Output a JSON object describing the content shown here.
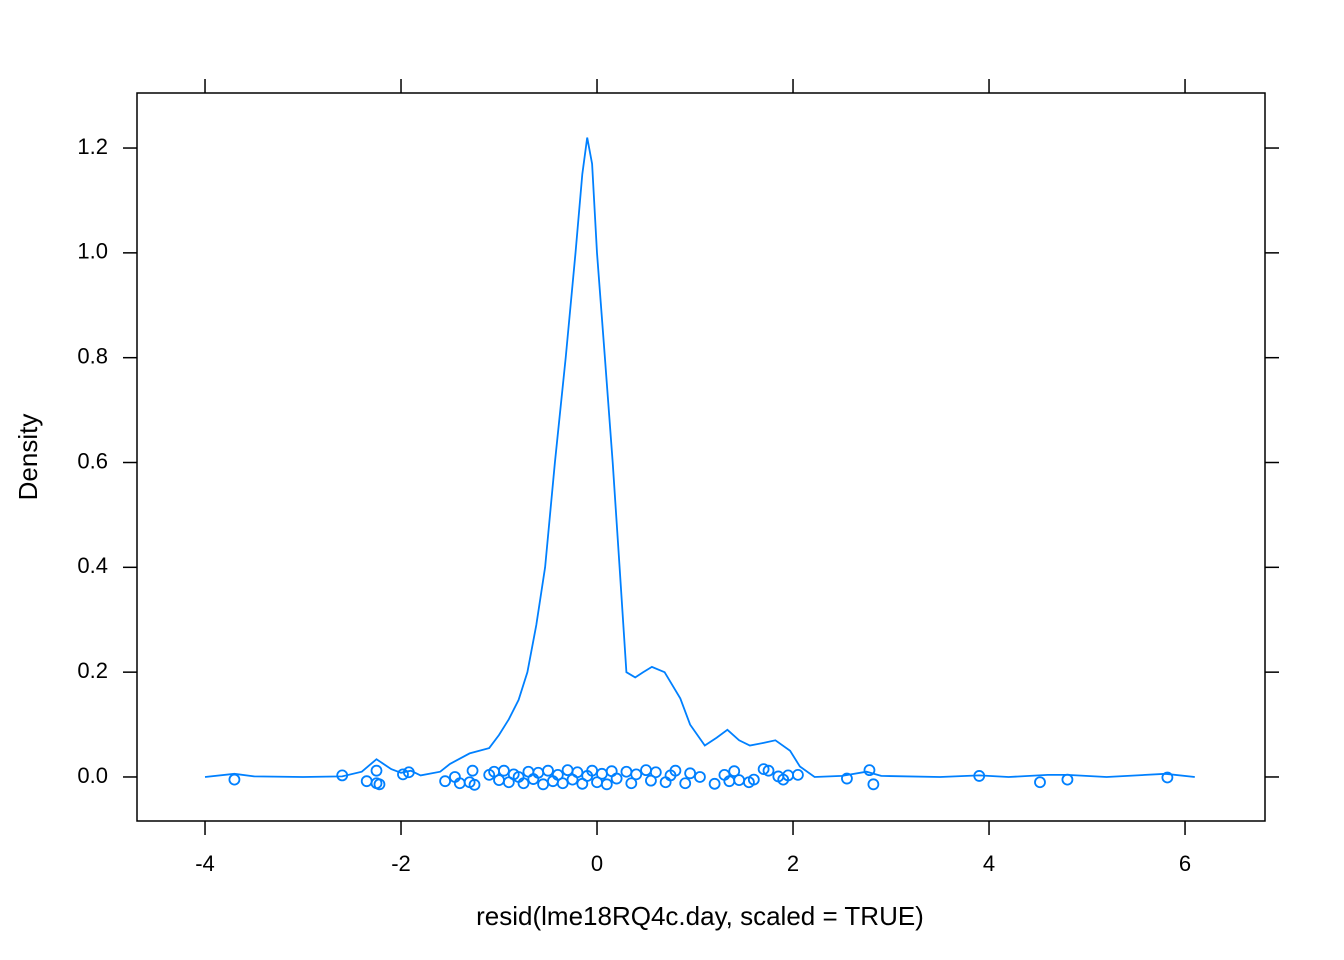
{
  "chart_data": {
    "type": "density",
    "xlabel": "resid(lme18RQ4c.day, scaled = TRUE)",
    "ylabel": "Density",
    "color": "#0080ff",
    "xlim": [
      -4.694,
      6.816
    ],
    "ylim": [
      -0.084,
      1.305
    ],
    "xticks": [
      -4,
      -2,
      0,
      2,
      4,
      6
    ],
    "yticks": [
      {
        "value": 0,
        "label": "0.0"
      },
      0.2,
      0.4,
      0.6,
      0.8,
      {
        "value": 1,
        "label": "1.0"
      },
      1.2
    ],
    "x": [
      -4.0,
      -3.7,
      -3.5,
      -3.0,
      -2.6,
      -2.4,
      -2.25,
      -2.1,
      -2.0,
      -1.9,
      -1.8,
      -1.6,
      -1.5,
      -1.3,
      -1.1,
      -1.0,
      -0.9,
      -0.8,
      -0.71,
      -0.62,
      -0.53,
      -0.43,
      -0.32,
      -0.22,
      -0.15,
      -0.1,
      -0.05,
      0.0,
      0.08,
      0.16,
      0.23,
      0.3,
      0.39,
      0.47,
      0.56,
      0.69,
      0.85,
      0.95,
      1.1,
      1.22,
      1.33,
      1.45,
      1.56,
      1.7,
      1.82,
      1.97,
      2.07,
      2.22,
      2.5,
      2.75,
      2.9,
      3.5,
      3.9,
      4.2,
      4.6,
      4.8,
      5.2,
      5.8,
      6.1
    ],
    "values": [
      0.0,
      0.006,
      0.001,
      0.0,
      0.001,
      0.01,
      0.034,
      0.015,
      0.008,
      0.012,
      0.003,
      0.01,
      0.025,
      0.045,
      0.055,
      0.08,
      0.11,
      0.147,
      0.2,
      0.29,
      0.4,
      0.6,
      0.8,
      1.0,
      1.15,
      1.22,
      1.17,
      1.0,
      0.8,
      0.6,
      0.4,
      0.2,
      0.19,
      0.2,
      0.21,
      0.2,
      0.15,
      0.1,
      0.06,
      0.075,
      0.09,
      0.07,
      0.06,
      0.065,
      0.07,
      0.05,
      0.02,
      0.0,
      0.002,
      0.01,
      0.002,
      0.0,
      0.003,
      0.0,
      0.004,
      0.004,
      0.0,
      0.006,
      0.0
    ],
    "points": {
      "x": [
        -3.7,
        -2.6,
        -2.35,
        -2.25,
        -2.25,
        -2.22,
        -1.98,
        -1.92,
        -1.55,
        -1.45,
        -1.4,
        -1.3,
        -1.27,
        -1.25,
        -1.1,
        -1.05,
        -1.0,
        -0.95,
        -0.9,
        -0.85,
        -0.8,
        -0.75,
        -0.7,
        -0.65,
        -0.6,
        -0.55,
        -0.5,
        -0.45,
        -0.4,
        -0.35,
        -0.3,
        -0.25,
        -0.2,
        -0.15,
        -0.1,
        -0.05,
        0.0,
        0.05,
        0.1,
        0.15,
        0.2,
        0.3,
        0.35,
        0.4,
        0.5,
        0.55,
        0.6,
        0.7,
        0.75,
        0.8,
        0.9,
        0.95,
        1.05,
        1.2,
        1.3,
        1.35,
        1.4,
        1.45,
        1.55,
        1.6,
        1.7,
        1.75,
        1.85,
        1.9,
        1.95,
        2.05,
        2.55,
        2.78,
        2.82,
        3.9,
        4.52,
        4.8,
        5.82
      ],
      "y": [
        -0.005,
        0.003,
        -0.008,
        0.012,
        -0.012,
        -0.014,
        0.005,
        0.009,
        -0.008,
        0.0,
        -0.012,
        -0.01,
        0.012,
        -0.015,
        0.004,
        0.01,
        -0.006,
        0.012,
        -0.01,
        0.005,
        0.0,
        -0.012,
        0.01,
        -0.004,
        0.008,
        -0.014,
        0.012,
        -0.008,
        0.004,
        -0.012,
        0.013,
        -0.005,
        0.009,
        -0.013,
        0.002,
        0.012,
        -0.01,
        0.006,
        -0.014,
        0.011,
        -0.003,
        0.01,
        -0.012,
        0.005,
        0.013,
        -0.007,
        0.009,
        -0.01,
        0.003,
        0.012,
        -0.012,
        0.007,
        0.0,
        -0.013,
        0.004,
        -0.008,
        0.011,
        -0.006,
        -0.01,
        -0.005,
        0.015,
        0.012,
        0.001,
        -0.005,
        0.003,
        0.004,
        -0.003,
        0.013,
        -0.014,
        0.002,
        -0.01,
        -0.005,
        -0.001
      ]
    }
  }
}
